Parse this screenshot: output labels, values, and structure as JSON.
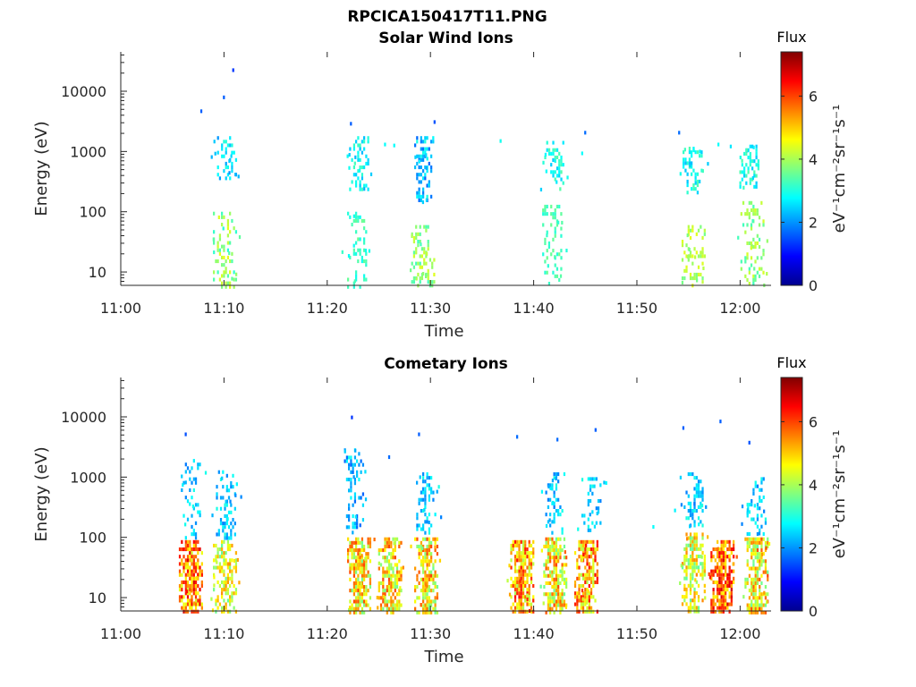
{
  "figure": {
    "title": "RPCICA150417T11.PNG"
  },
  "chart_data": [
    {
      "type": "heatmap",
      "title": "Solar Wind Ions",
      "xlabel": "Time",
      "ylabel": "Energy (eV)",
      "x_ticks": [
        "11:00",
        "11:10",
        "11:20",
        "11:30",
        "11:40",
        "11:50",
        "12:00"
      ],
      "y_ticks": [
        "10",
        "100",
        "1000",
        "10000"
      ],
      "y_scale": "log",
      "ylim": [
        6,
        45000
      ],
      "xlim_minutes": [
        0,
        63
      ],
      "colorbar": {
        "title": "Flux",
        "label": "eV⁻¹cm⁻²sr⁻¹s⁻¹",
        "range": [
          0,
          7.4
        ],
        "ticks": [
          "0",
          "2",
          "4",
          "6"
        ],
        "colormap": "jet"
      },
      "bursts": [
        {
          "t": 10.2,
          "emin": 350,
          "emax": 1800,
          "fmin": 2.0,
          "fmax": 3.1,
          "density": 0.45
        },
        {
          "t": 10.0,
          "emin": 6,
          "emax": 100,
          "fmin": 3.0,
          "fmax": 4.5,
          "density": 0.35
        },
        {
          "t": 23.0,
          "emin": 250,
          "emax": 1800,
          "fmin": 2.2,
          "fmax": 3.3,
          "density": 0.5
        },
        {
          "t": 22.8,
          "emin": 6,
          "emax": 100,
          "fmin": 2.8,
          "fmax": 3.6,
          "density": 0.3
        },
        {
          "t": 29.3,
          "emin": 150,
          "emax": 1800,
          "fmin": 1.6,
          "fmax": 3.0,
          "density": 0.55
        },
        {
          "t": 29.2,
          "emin": 6,
          "emax": 60,
          "fmin": 3.2,
          "fmax": 4.4,
          "density": 0.45
        },
        {
          "t": 41.9,
          "emin": 250,
          "emax": 1500,
          "fmin": 2.4,
          "fmax": 3.4,
          "density": 0.45
        },
        {
          "t": 41.7,
          "emin": 6,
          "emax": 150,
          "fmin": 3.0,
          "fmax": 3.6,
          "density": 0.35
        },
        {
          "t": 55.3,
          "emin": 200,
          "emax": 1200,
          "fmin": 2.3,
          "fmax": 3.4,
          "density": 0.45
        },
        {
          "t": 55.4,
          "emin": 6,
          "emax": 60,
          "fmin": 3.6,
          "fmax": 4.5,
          "density": 0.35
        },
        {
          "t": 60.8,
          "emin": 250,
          "emax": 1300,
          "fmin": 2.4,
          "fmax": 3.4,
          "density": 0.45
        },
        {
          "t": 61.1,
          "emin": 6,
          "emax": 150,
          "fmin": 3.2,
          "fmax": 4.4,
          "density": 0.35
        }
      ],
      "scattered": [
        {
          "t": 7.7,
          "e": 5000,
          "f": 1.6
        },
        {
          "t": 9.9,
          "e": 8500,
          "f": 1.6
        },
        {
          "t": 10.8,
          "e": 24000,
          "f": 1.3
        },
        {
          "t": 22.2,
          "e": 3100,
          "f": 1.6
        },
        {
          "t": 25.5,
          "e": 1400,
          "f": 2.8
        },
        {
          "t": 26.4,
          "e": 1350,
          "f": 2.8
        },
        {
          "t": 30.3,
          "e": 3300,
          "f": 1.5
        },
        {
          "t": 36.7,
          "e": 1600,
          "f": 2.9
        },
        {
          "t": 44.9,
          "e": 2200,
          "f": 1.7
        },
        {
          "t": 44.6,
          "e": 1000,
          "f": 2.8
        },
        {
          "t": 54.0,
          "e": 2200,
          "f": 1.7
        },
        {
          "t": 57.8,
          "e": 1400,
          "f": 2.8
        },
        {
          "t": 59.0,
          "e": 1300,
          "f": 2.6
        }
      ]
    },
    {
      "type": "heatmap",
      "title": "Cometary Ions",
      "xlabel": "Time",
      "ylabel": "Energy (eV)",
      "x_ticks": [
        "11:00",
        "11:10",
        "11:20",
        "11:30",
        "11:40",
        "11:50",
        "12:00"
      ],
      "y_ticks": [
        "10",
        "100",
        "1000",
        "10000"
      ],
      "y_scale": "log",
      "ylim": [
        6,
        45000
      ],
      "xlim_minutes": [
        0,
        63
      ],
      "colorbar": {
        "title": "Flux",
        "label": "eV⁻¹cm⁻²sr⁻¹s⁻¹",
        "range": [
          0,
          7.4
        ],
        "ticks": [
          "0",
          "2",
          "4",
          "6"
        ],
        "colormap": "jet"
      },
      "bursts": [
        {
          "t": 6.7,
          "emin": 6,
          "emax": 90,
          "fmin": 4.3,
          "fmax": 6.8,
          "density": 0.95
        },
        {
          "t": 6.7,
          "emin": 100,
          "emax": 2000,
          "fmin": 1.8,
          "fmax": 3.0,
          "density": 0.3
        },
        {
          "t": 10.0,
          "emin": 6,
          "emax": 90,
          "fmin": 3.5,
          "fmax": 5.5,
          "density": 0.7
        },
        {
          "t": 10.1,
          "emin": 100,
          "emax": 1300,
          "fmin": 1.8,
          "fmax": 3.0,
          "density": 0.45
        },
        {
          "t": 23.0,
          "emin": 6,
          "emax": 100,
          "fmin": 3.5,
          "fmax": 6.0,
          "density": 0.85
        },
        {
          "t": 22.5,
          "emin": 120,
          "emax": 3000,
          "fmin": 1.6,
          "fmax": 2.9,
          "density": 0.35
        },
        {
          "t": 26.0,
          "emin": 6,
          "emax": 100,
          "fmin": 3.6,
          "fmax": 6.0,
          "density": 0.85
        },
        {
          "t": 29.5,
          "emin": 6,
          "emax": 100,
          "fmin": 3.5,
          "fmax": 6.0,
          "density": 0.85
        },
        {
          "t": 29.5,
          "emin": 120,
          "emax": 1200,
          "fmin": 1.8,
          "fmax": 3.0,
          "density": 0.45
        },
        {
          "t": 38.8,
          "emin": 6,
          "emax": 90,
          "fmin": 4.0,
          "fmax": 6.5,
          "density": 0.95
        },
        {
          "t": 42.0,
          "emin": 6,
          "emax": 100,
          "fmin": 3.5,
          "fmax": 6.0,
          "density": 0.85
        },
        {
          "t": 42.0,
          "emin": 120,
          "emax": 1200,
          "fmin": 1.8,
          "fmax": 3.0,
          "density": 0.4
        },
        {
          "t": 45.0,
          "emin": 6,
          "emax": 90,
          "fmin": 4.0,
          "fmax": 6.5,
          "density": 0.9
        },
        {
          "t": 45.5,
          "emin": 120,
          "emax": 1000,
          "fmin": 1.8,
          "fmax": 3.0,
          "density": 0.3
        },
        {
          "t": 55.4,
          "emin": 6,
          "emax": 120,
          "fmin": 3.4,
          "fmax": 5.5,
          "density": 0.8
        },
        {
          "t": 55.4,
          "emin": 150,
          "emax": 1200,
          "fmin": 1.8,
          "fmax": 3.0,
          "density": 0.45
        },
        {
          "t": 58.2,
          "emin": 6,
          "emax": 90,
          "fmin": 4.5,
          "fmax": 6.8,
          "density": 0.95
        },
        {
          "t": 61.5,
          "emin": 6,
          "emax": 100,
          "fmin": 3.5,
          "fmax": 6.0,
          "density": 0.85
        },
        {
          "t": 61.5,
          "emin": 120,
          "emax": 1000,
          "fmin": 1.8,
          "fmax": 3.0,
          "density": 0.4
        }
      ],
      "scattered": [
        {
          "t": 6.2,
          "e": 5500,
          "f": 1.5
        },
        {
          "t": 22.3,
          "e": 10500,
          "f": 1.3
        },
        {
          "t": 25.9,
          "e": 2300,
          "f": 1.7
        },
        {
          "t": 28.8,
          "e": 5500,
          "f": 1.6
        },
        {
          "t": 38.3,
          "e": 5000,
          "f": 1.7
        },
        {
          "t": 42.2,
          "e": 4500,
          "f": 1.7
        },
        {
          "t": 45.9,
          "e": 6500,
          "f": 1.6
        },
        {
          "t": 54.4,
          "e": 7000,
          "f": 1.6
        },
        {
          "t": 58.0,
          "e": 9000,
          "f": 1.6
        },
        {
          "t": 60.8,
          "e": 4000,
          "f": 1.5
        },
        {
          "t": 51.5,
          "e": 160,
          "f": 2.8
        },
        {
          "t": 53.6,
          "e": 300,
          "f": 2.7
        }
      ]
    }
  ]
}
